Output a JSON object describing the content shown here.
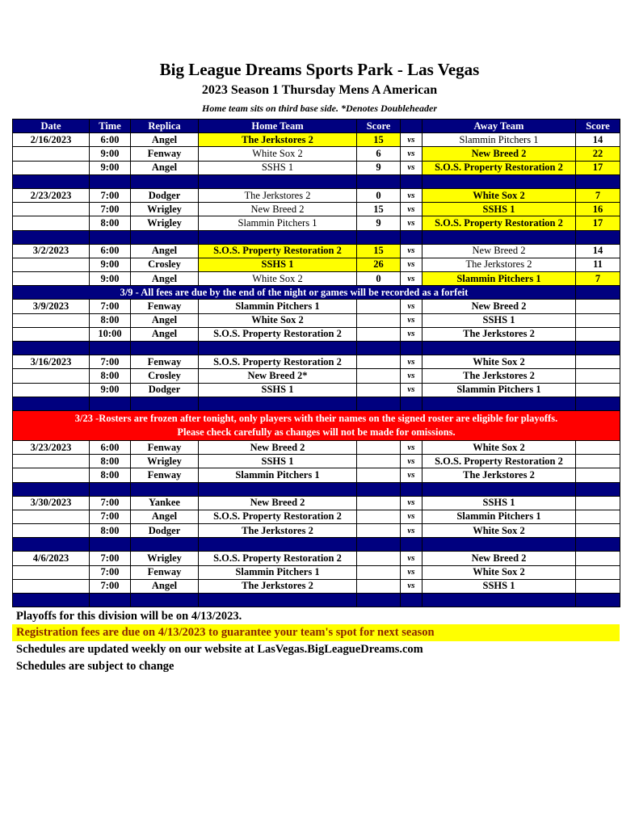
{
  "header": {
    "title": "Big League Dreams Sports Park - Las Vegas",
    "subtitle": "2023 Season 1 Thursday Mens A American",
    "note": "Home team sits on third base side.  *Denotes Doubleheader"
  },
  "colors": {
    "header_bg": "#00007f",
    "winner_highlight": "#ffff00",
    "alert_bg": "#ff0000"
  },
  "table": {
    "columns": [
      "Date",
      "Time",
      "Replica",
      "Home Team",
      "Score",
      "",
      "Away Team",
      "Score"
    ],
    "rows": [
      {
        "type": "game",
        "date": "2/16/2023",
        "time": "6:00",
        "replica": "Angel",
        "home": "The Jerkstores 2",
        "home_score": "15",
        "vs": "vs",
        "away": "Slammin Pitchers 1",
        "away_score": "14",
        "winner": "home"
      },
      {
        "type": "game",
        "date": "",
        "time": "9:00",
        "replica": "Fenway",
        "home": "White Sox 2",
        "home_score": "6",
        "vs": "vs",
        "away": "New Breed 2",
        "away_score": "22",
        "winner": "away"
      },
      {
        "type": "game",
        "date": "",
        "time": "9:00",
        "replica": "Angel",
        "home": "SSHS 1",
        "home_score": "9",
        "vs": "vs",
        "away": "S.O.S. Property Restoration 2",
        "away_score": "17",
        "winner": "away"
      },
      {
        "type": "blank"
      },
      {
        "type": "game",
        "date": "2/23/2023",
        "time": "7:00",
        "replica": "Dodger",
        "home": "The Jerkstores 2",
        "home_score": "0",
        "vs": "vs",
        "away": "White Sox 2",
        "away_score": "7",
        "winner": "away"
      },
      {
        "type": "game",
        "date": "",
        "time": "7:00",
        "replica": "Wrigley",
        "home": "New Breed 2",
        "home_score": "15",
        "vs": "vs",
        "away": "SSHS 1",
        "away_score": "16",
        "winner": "away"
      },
      {
        "type": "game",
        "date": "",
        "time": "8:00",
        "replica": "Wrigley",
        "home": "Slammin Pitchers 1",
        "home_score": "9",
        "vs": "vs",
        "away": "S.O.S. Property Restoration 2",
        "away_score": "17",
        "winner": "away"
      },
      {
        "type": "blank"
      },
      {
        "type": "game",
        "date": "3/2/2023",
        "time": "6:00",
        "replica": "Angel",
        "home": "S.O.S. Property Restoration 2",
        "home_score": "15",
        "vs": "vs",
        "away": "New Breed 2",
        "away_score": "14",
        "winner": "home"
      },
      {
        "type": "game",
        "date": "",
        "time": "9:00",
        "replica": "Crosley",
        "home": "SSHS 1",
        "home_score": "26",
        "vs": "vs",
        "away": "The Jerkstores 2",
        "away_score": "11",
        "winner": "home"
      },
      {
        "type": "game",
        "date": "",
        "time": "9:00",
        "replica": "Angel",
        "home": "White Sox 2",
        "home_score": "0",
        "vs": "vs",
        "away": "Slammin Pitchers 1",
        "away_score": "7",
        "winner": "away"
      },
      {
        "type": "notice",
        "text": "3/9 - All fees are due by the end of the night or games will be recorded as a forfeit"
      },
      {
        "type": "game",
        "date": "3/9/2023",
        "time": "7:00",
        "replica": "Fenway",
        "home": "Slammin Pitchers 1",
        "home_score": "",
        "vs": "vs",
        "away": "New Breed 2",
        "away_score": "",
        "winner": null
      },
      {
        "type": "game",
        "date": "",
        "time": "8:00",
        "replica": "Angel",
        "home": "White Sox 2",
        "home_score": "",
        "vs": "vs",
        "away": "SSHS 1",
        "away_score": "",
        "winner": null
      },
      {
        "type": "game",
        "date": "",
        "time": "10:00",
        "replica": "Angel",
        "home": "S.O.S. Property Restoration 2",
        "home_score": "",
        "vs": "vs",
        "away": "The Jerkstores 2",
        "away_score": "",
        "winner": null
      },
      {
        "type": "blank"
      },
      {
        "type": "game",
        "date": "3/16/2023",
        "time": "7:00",
        "replica": "Fenway",
        "home": "S.O.S. Property Restoration 2",
        "home_score": "",
        "vs": "vs",
        "away": "White Sox 2",
        "away_score": "",
        "winner": null
      },
      {
        "type": "game",
        "date": "",
        "time": "8:00",
        "replica": "Crosley",
        "home": "New Breed 2*",
        "home_score": "",
        "vs": "vs",
        "away": "The Jerkstores 2",
        "away_score": "",
        "winner": null
      },
      {
        "type": "game",
        "date": "",
        "time": "9:00",
        "replica": "Dodger",
        "home": "SSHS 1",
        "home_score": "",
        "vs": "vs",
        "away": "Slammin Pitchers 1",
        "away_score": "",
        "winner": null
      },
      {
        "type": "blank"
      },
      {
        "type": "alert",
        "line1": "3/23 -Rosters are frozen after tonight, only players with their names on the signed roster are eligible for playoffs.",
        "line2": "Please check carefully as changes will not be made for omissions."
      },
      {
        "type": "game",
        "date": "3/23/2023",
        "time": "6:00",
        "replica": "Fenway",
        "home": "New Breed 2",
        "home_score": "",
        "vs": "vs",
        "away": "White Sox 2",
        "away_score": "",
        "winner": null
      },
      {
        "type": "game",
        "date": "",
        "time": "8:00",
        "replica": "Wrigley",
        "home": "SSHS 1",
        "home_score": "",
        "vs": "vs",
        "away": "S.O.S. Property Restoration 2",
        "away_score": "",
        "winner": null
      },
      {
        "type": "game",
        "date": "",
        "time": "8:00",
        "replica": "Fenway",
        "home": "Slammin Pitchers 1",
        "home_score": "",
        "vs": "vs",
        "away": "The Jerkstores 2",
        "away_score": "",
        "winner": null
      },
      {
        "type": "blank"
      },
      {
        "type": "game",
        "date": "3/30/2023",
        "time": "7:00",
        "replica": "Yankee",
        "home": "New Breed 2",
        "home_score": "",
        "vs": "vs",
        "away": "SSHS 1",
        "away_score": "",
        "winner": null
      },
      {
        "type": "game",
        "date": "",
        "time": "7:00",
        "replica": "Angel",
        "home": "S.O.S. Property Restoration 2",
        "home_score": "",
        "vs": "vs",
        "away": "Slammin Pitchers 1",
        "away_score": "",
        "winner": null
      },
      {
        "type": "game",
        "date": "",
        "time": "8:00",
        "replica": "Dodger",
        "home": "The Jerkstores 2",
        "home_score": "",
        "vs": "vs",
        "away": "White Sox 2",
        "away_score": "",
        "winner": null
      },
      {
        "type": "blank"
      },
      {
        "type": "game",
        "date": "4/6/2023",
        "time": "7:00",
        "replica": "Wrigley",
        "home": "S.O.S. Property Restoration 2",
        "home_score": "",
        "vs": "vs",
        "away": "New Breed 2",
        "away_score": "",
        "winner": null
      },
      {
        "type": "game",
        "date": "",
        "time": "7:00",
        "replica": "Fenway",
        "home": "Slammin Pitchers 1",
        "home_score": "",
        "vs": "vs",
        "away": "White Sox 2",
        "away_score": "",
        "winner": null
      },
      {
        "type": "game",
        "date": "",
        "time": "7:00",
        "replica": "Angel",
        "home": "The Jerkstores 2",
        "home_score": "",
        "vs": "vs",
        "away": "SSHS 1",
        "away_score": "",
        "winner": null
      },
      {
        "type": "blank"
      }
    ]
  },
  "footer": {
    "playoffs": "Playoffs for this division will be on 4/13/2023.",
    "registration": "Registration fees are due on 4/13/2023 to guarantee your team's spot for next season",
    "website": "Schedules are updated weekly on our website at LasVegas.BigLeagueDreams.com",
    "subject": "Schedules are subject to change"
  }
}
